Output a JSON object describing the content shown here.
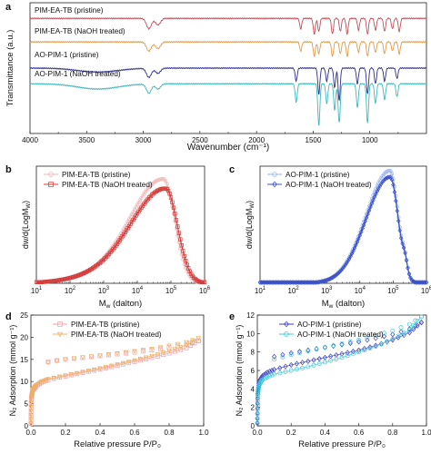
{
  "colors": {
    "pim_pristine": "#c0505a",
    "pim_naoh": "#e09a4a",
    "ao_pristine": "#2e2e8a",
    "ao_naoh": "#3cb8c0",
    "gpc_pim_light": "#f2b8b8",
    "gpc_pim_dark": "#d23a3a",
    "gpc_ao_light": "#9db7f0",
    "gpc_ao_dark": "#3a4fc8",
    "iso_pim_light": "#f0a0a8",
    "iso_pim_orange": "#f0b060",
    "iso_ao_dark": "#4040c0",
    "iso_ao_cyan": "#40c8d8"
  },
  "chart_data": [
    {
      "panel_letter": "a",
      "type": "line",
      "xlabel": "Wavenumber (cm⁻¹)",
      "ylabel": "Transmittance (a.u.)",
      "xlim": [
        4000,
        500
      ],
      "x_ticks": [
        4000,
        3500,
        3000,
        2500,
        2000,
        1500,
        1000
      ],
      "series": [
        {
          "name": "PIM-EA-TB (pristine)",
          "offset": 0.88,
          "colorKey": "pim_pristine",
          "bands": [
            [
              2950,
              0.08
            ],
            [
              2870,
              0.05
            ],
            [
              1610,
              0.08
            ],
            [
              1490,
              0.12
            ],
            [
              1450,
              0.1
            ],
            [
              1330,
              0.12
            ],
            [
              1260,
              0.1
            ],
            [
              1200,
              0.12
            ],
            [
              1100,
              0.09
            ],
            [
              1020,
              0.12
            ],
            [
              950,
              0.09
            ],
            [
              870,
              0.1
            ],
            [
              800,
              0.08
            ],
            [
              740,
              0.1
            ]
          ]
        },
        {
          "name": "PIM-EA-TB (NaOH treated)",
          "offset": 0.7,
          "colorKey": "pim_naoh",
          "bands": [
            [
              2950,
              0.07
            ],
            [
              2870,
              0.05
            ],
            [
              1610,
              0.07
            ],
            [
              1490,
              0.11
            ],
            [
              1450,
              0.09
            ],
            [
              1330,
              0.11
            ],
            [
              1260,
              0.09
            ],
            [
              1200,
              0.11
            ],
            [
              1100,
              0.08
            ],
            [
              1020,
              0.11
            ],
            [
              950,
              0.08
            ],
            [
              870,
              0.09
            ],
            [
              800,
              0.07
            ],
            [
              740,
              0.09
            ]
          ]
        },
        {
          "name": "AO-PIM-1 (pristine)",
          "offset": 0.5,
          "colorKey": "ao_pristine",
          "bands": [
            [
              3400,
              0.03
            ],
            [
              2950,
              0.07
            ],
            [
              2870,
              0.04
            ],
            [
              1650,
              0.1
            ],
            [
              1450,
              0.2
            ],
            [
              1380,
              0.1
            ],
            [
              1310,
              0.15
            ],
            [
              1270,
              0.25
            ],
            [
              1110,
              0.12
            ],
            [
              1020,
              0.2
            ],
            [
              950,
              0.12
            ],
            [
              870,
              0.1
            ],
            [
              760,
              0.08
            ]
          ]
        },
        {
          "name": "AO-PIM-1 (NaOH treated)",
          "offset": 0.38,
          "colorKey": "ao_naoh",
          "bands": [
            [
              3400,
              0.04
            ],
            [
              2950,
              0.07
            ],
            [
              2870,
              0.04
            ],
            [
              1650,
              0.14
            ],
            [
              1450,
              0.32
            ],
            [
              1380,
              0.15
            ],
            [
              1310,
              0.2
            ],
            [
              1270,
              0.3
            ],
            [
              1110,
              0.18
            ],
            [
              1020,
              0.3
            ],
            [
              950,
              0.15
            ],
            [
              870,
              0.12
            ],
            [
              760,
              0.1
            ]
          ]
        }
      ]
    },
    {
      "panel_letter": "b",
      "type": "line",
      "xlabel": "M_w (dalton)",
      "ylabel": "dw/d(LogM_w)",
      "xscale": "log",
      "xlim": [
        10,
        1000000
      ],
      "ylim": [
        0,
        1.0
      ],
      "series": [
        {
          "name": "PIM-EA-TB (pristine)",
          "peak_Mw": 60000,
          "height": 0.88,
          "width": 0.75,
          "colorKey": "gpc_pim_light"
        },
        {
          "name": "PIM-EA-TB (NaOH treated)",
          "peak_Mw": 70000,
          "height": 0.8,
          "width": 0.78,
          "colorKey": "gpc_pim_dark"
        }
      ]
    },
    {
      "panel_letter": "c",
      "type": "line",
      "xlabel": "M_w (dalton)",
      "ylabel": "dw/d(LogM_w)",
      "xscale": "log",
      "xlim": [
        10,
        1000000
      ],
      "ylim": [
        0,
        1.3
      ],
      "series": [
        {
          "name": "AO-PIM-1 (pristine)",
          "peak_Mw": 80000,
          "height": 1.25,
          "width": 0.55,
          "colorKey": "gpc_ao_light"
        },
        {
          "name": "AO-PIM-1 (NaOH treated)",
          "peak_Mw": 80000,
          "height": 1.18,
          "width": 0.55,
          "colorKey": "gpc_ao_dark"
        }
      ]
    },
    {
      "panel_letter": "d",
      "type": "scatter",
      "xlabel": "Relative pressure P/P₀",
      "ylabel": "N₂ Adsorption (mmol g⁻¹)",
      "xlim": [
        0,
        1.0
      ],
      "ylim": [
        0,
        25
      ],
      "x_ticks": [
        0.0,
        0.2,
        0.4,
        0.6,
        0.8,
        1.0
      ],
      "y_ticks": [
        0,
        5,
        10,
        15,
        20,
        25
      ],
      "series": [
        {
          "name": "PIM-EA-TB (pristine)",
          "colorKey": "iso_pim_light",
          "marker": "square",
          "adsorption": [
            [
              0.0,
              0.5
            ],
            [
              0.002,
              6.0
            ],
            [
              0.01,
              8.0
            ],
            [
              0.03,
              9.0
            ],
            [
              0.06,
              9.8
            ],
            [
              0.1,
              10.4
            ],
            [
              0.2,
              11.2
            ],
            [
              0.3,
              12.0
            ],
            [
              0.4,
              12.8
            ],
            [
              0.5,
              13.6
            ],
            [
              0.6,
              14.5
            ],
            [
              0.7,
              15.4
            ],
            [
              0.8,
              16.4
            ],
            [
              0.9,
              17.6
            ],
            [
              0.97,
              19.2
            ]
          ],
          "desorption": [
            [
              0.97,
              19.2
            ],
            [
              0.9,
              18.4
            ],
            [
              0.8,
              17.7
            ],
            [
              0.7,
              17.1
            ],
            [
              0.6,
              16.6
            ],
            [
              0.5,
              16.2
            ],
            [
              0.4,
              15.8
            ],
            [
              0.3,
              15.4
            ],
            [
              0.2,
              15.0
            ],
            [
              0.1,
              14.5
            ]
          ]
        },
        {
          "name": "PIM-EA-TB (NaOH treated)",
          "colorKey": "iso_pim_orange",
          "marker": "triangle-down",
          "adsorption": [
            [
              0.0,
              0.5
            ],
            [
              0.002,
              6.2
            ],
            [
              0.01,
              8.2
            ],
            [
              0.03,
              9.2
            ],
            [
              0.06,
              10.0
            ],
            [
              0.1,
              10.6
            ],
            [
              0.2,
              11.4
            ],
            [
              0.3,
              12.2
            ],
            [
              0.4,
              13.0
            ],
            [
              0.5,
              13.9
            ],
            [
              0.6,
              14.8
            ],
            [
              0.7,
              15.8
            ],
            [
              0.8,
              16.9
            ],
            [
              0.9,
              18.2
            ],
            [
              0.97,
              19.8
            ]
          ],
          "desorption": [
            [
              0.97,
              19.8
            ],
            [
              0.9,
              18.9
            ],
            [
              0.8,
              18.1
            ],
            [
              0.7,
              17.4
            ],
            [
              0.6,
              16.9
            ],
            [
              0.5,
              16.4
            ],
            [
              0.4,
              15.9
            ],
            [
              0.3,
              15.5
            ],
            [
              0.2,
              15.0
            ],
            [
              0.1,
              14.3
            ]
          ]
        }
      ]
    },
    {
      "panel_letter": "e",
      "type": "scatter",
      "xlabel": "Relative pressure P/P₀",
      "ylabel": "N₂ Adsorption (mmol g⁻¹)",
      "xlim": [
        0,
        1.0
      ],
      "ylim": [
        0,
        12
      ],
      "x_ticks": [
        0.0,
        0.2,
        0.4,
        0.6,
        0.8,
        1.0
      ],
      "y_ticks": [
        0,
        2,
        4,
        6,
        8,
        10,
        12
      ],
      "series": [
        {
          "name": "AO-PIM-1 (pristine)",
          "colorKey": "iso_ao_dark",
          "marker": "diamond",
          "adsorption": [
            [
              0.0,
              0.3
            ],
            [
              0.002,
              3.5
            ],
            [
              0.01,
              4.8
            ],
            [
              0.03,
              5.4
            ],
            [
              0.06,
              5.8
            ],
            [
              0.1,
              6.1
            ],
            [
              0.2,
              6.6
            ],
            [
              0.3,
              7.0
            ],
            [
              0.4,
              7.4
            ],
            [
              0.5,
              7.8
            ],
            [
              0.6,
              8.2
            ],
            [
              0.7,
              8.7
            ],
            [
              0.8,
              9.3
            ],
            [
              0.9,
              10.1
            ],
            [
              0.97,
              11.2
            ]
          ],
          "desorption": [
            [
              0.97,
              11.2
            ],
            [
              0.9,
              10.5
            ],
            [
              0.8,
              9.9
            ],
            [
              0.7,
              9.5
            ],
            [
              0.6,
              9.1
            ],
            [
              0.5,
              8.8
            ],
            [
              0.4,
              8.5
            ],
            [
              0.3,
              8.2
            ],
            [
              0.2,
              7.9
            ],
            [
              0.1,
              7.5
            ]
          ]
        },
        {
          "name": "AO-PIM-1 (NaOH treated)",
          "colorKey": "iso_ao_cyan",
          "marker": "circle",
          "adsorption": [
            [
              0.0,
              0.3
            ],
            [
              0.002,
              3.2
            ],
            [
              0.01,
              4.4
            ],
            [
              0.03,
              5.0
            ],
            [
              0.06,
              5.3
            ],
            [
              0.1,
              5.6
            ],
            [
              0.2,
              6.0
            ],
            [
              0.3,
              6.4
            ],
            [
              0.4,
              6.9
            ],
            [
              0.5,
              7.4
            ],
            [
              0.6,
              8.0
            ],
            [
              0.7,
              8.6
            ],
            [
              0.8,
              9.4
            ],
            [
              0.9,
              10.4
            ],
            [
              0.97,
              11.8
            ]
          ],
          "desorption": [
            [
              0.97,
              11.8
            ],
            [
              0.9,
              11.0
            ],
            [
              0.8,
              10.3
            ],
            [
              0.7,
              9.8
            ],
            [
              0.6,
              9.3
            ],
            [
              0.5,
              8.9
            ],
            [
              0.4,
              8.5
            ],
            [
              0.3,
              8.1
            ],
            [
              0.2,
              7.7
            ],
            [
              0.1,
              7.2
            ]
          ]
        }
      ]
    }
  ]
}
